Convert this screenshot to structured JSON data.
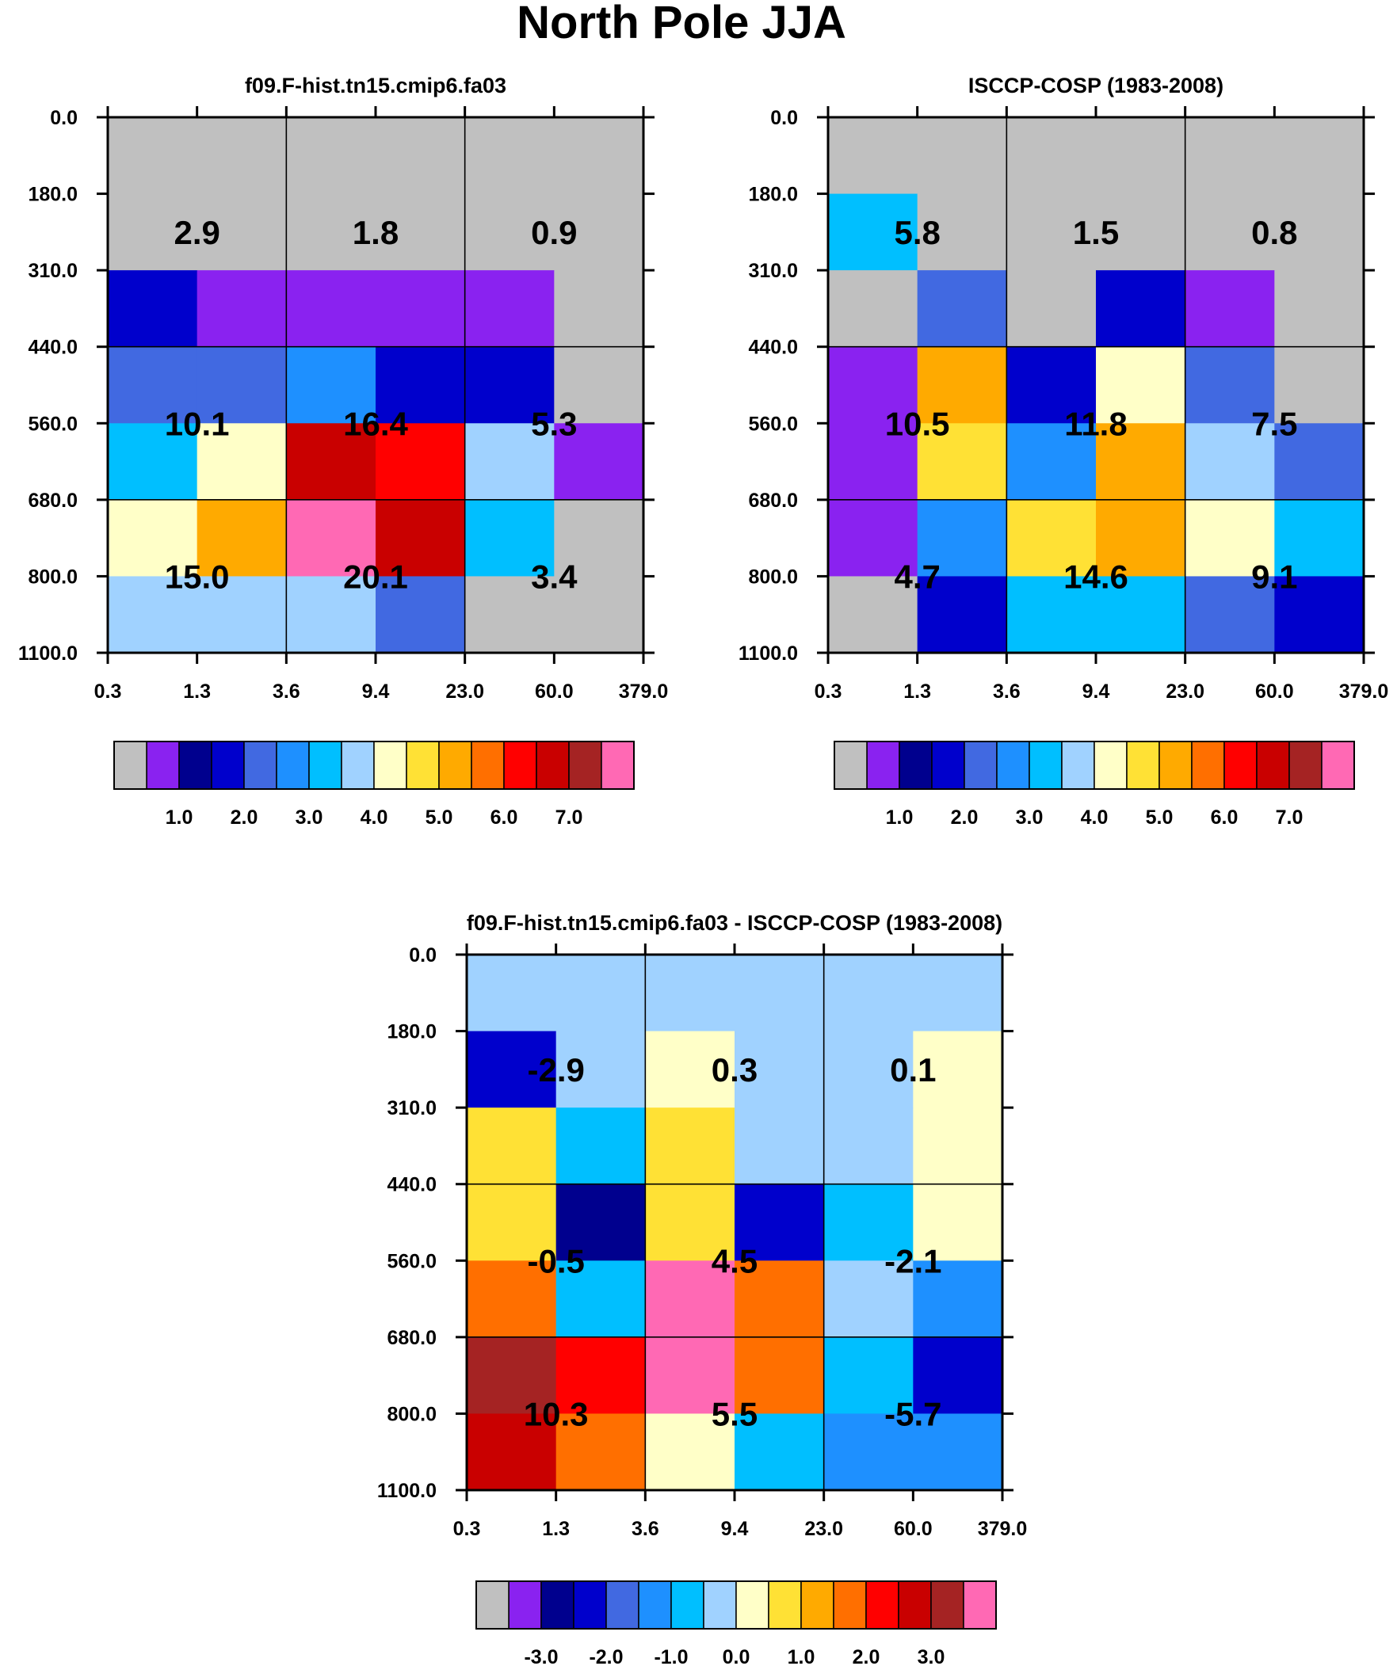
{
  "figure_title": "North Pole JJA",
  "chart_data": [
    {
      "type": "heatmap",
      "title": "f09.F-hist.tn15.cmip6.fa03",
      "x_ticks": [
        "0.3",
        "1.3",
        "3.6",
        "9.4",
        "23.0",
        "60.0",
        "379.0"
      ],
      "y_ticks": [
        "0.0",
        "180.0",
        "310.0",
        "440.0",
        "560.0",
        "680.0",
        "800.0",
        "1100.0"
      ],
      "cells": [
        [
          "missing",
          "missing",
          "missing",
          "missing",
          "missing",
          "missing"
        ],
        [
          "missing",
          "missing",
          "missing",
          "missing",
          "missing",
          "missing"
        ],
        [
          1.6,
          0.7,
          0.7,
          0.7,
          0.7,
          "missing"
        ],
        [
          2.2,
          2.2,
          2.7,
          1.7,
          1.7,
          "missing"
        ],
        [
          3.2,
          4.2,
          6.7,
          6.2,
          3.7,
          0.7
        ],
        [
          4.2,
          5.2,
          8.2,
          6.7,
          3.2,
          "missing"
        ],
        [
          3.7,
          3.7,
          3.7,
          2.2,
          "missing",
          "missing"
        ]
      ],
      "box_labels": [
        [
          "2.9",
          "1.8",
          "0.9"
        ],
        [
          "10.1",
          "16.4",
          "5.3"
        ],
        [
          "15.0",
          "20.1",
          "3.4"
        ]
      ],
      "colorbar_ticks": [
        "1.0",
        "2.0",
        "3.0",
        "4.0",
        "5.0",
        "6.0",
        "7.0"
      ]
    },
    {
      "type": "heatmap",
      "title": "ISCCP-COSP (1983-2008)",
      "x_ticks": [
        "0.3",
        "1.3",
        "3.6",
        "9.4",
        "23.0",
        "60.0",
        "379.0"
      ],
      "y_ticks": [
        "0.0",
        "180.0",
        "310.0",
        "440.0",
        "560.0",
        "680.0",
        "800.0",
        "1100.0"
      ],
      "cells": [
        [
          "missing",
          "missing",
          "missing",
          "missing",
          "missing",
          "missing"
        ],
        [
          3.2,
          "missing",
          "missing",
          "missing",
          "missing",
          "missing"
        ],
        [
          "missing",
          2.2,
          "missing",
          1.6,
          0.7,
          "missing"
        ],
        [
          0.7,
          5.2,
          1.6,
          4.2,
          2.2,
          "missing"
        ],
        [
          0.7,
          4.6,
          2.7,
          5.2,
          3.7,
          2.2
        ],
        [
          0.7,
          2.7,
          4.6,
          5.2,
          4.2,
          3.2
        ],
        [
          "missing",
          1.6,
          3.2,
          3.2,
          2.2,
          1.6
        ]
      ],
      "box_labels": [
        [
          "5.8",
          "1.5",
          "0.8"
        ],
        [
          "10.5",
          "11.8",
          "7.5"
        ],
        [
          "4.7",
          "14.6",
          "9.1"
        ]
      ],
      "colorbar_ticks": [
        "1.0",
        "2.0",
        "3.0",
        "4.0",
        "5.0",
        "6.0",
        "7.0"
      ]
    },
    {
      "type": "heatmap",
      "title": "f09.F-hist.tn15.cmip6.fa03 - ISCCP-COSP (1983-2008)",
      "x_ticks": [
        "0.3",
        "1.3",
        "3.6",
        "9.4",
        "23.0",
        "60.0",
        "379.0"
      ],
      "y_ticks": [
        "0.0",
        "180.0",
        "310.0",
        "440.0",
        "560.0",
        "680.0",
        "800.0",
        "1100.0"
      ],
      "cells": [
        [
          -0.25,
          -0.25,
          -0.25,
          -0.25,
          -0.25,
          -0.25
        ],
        [
          -2.25,
          -0.25,
          0.25,
          -0.25,
          -0.25,
          0.25
        ],
        [
          0.75,
          -0.75,
          0.75,
          -0.25,
          -0.25,
          0.25
        ],
        [
          0.75,
          -2.75,
          0.75,
          -2.25,
          -0.75,
          0.25
        ],
        [
          1.75,
          -0.75,
          3.75,
          1.75,
          -0.25,
          -1.25
        ],
        [
          3.25,
          2.25,
          3.75,
          1.75,
          -0.75,
          -2.25
        ],
        [
          2.75,
          1.75,
          0.25,
          -0.75,
          -1.25,
          -1.25
        ]
      ],
      "box_labels": [
        [
          "-2.9",
          "0.3",
          "0.1"
        ],
        [
          "-0.5",
          "4.5",
          "-2.1"
        ],
        [
          "10.3",
          "5.5",
          "-5.7"
        ]
      ],
      "colorbar_ticks": [
        "-3.0",
        "-2.0",
        "-1.0",
        "0.0",
        "1.0",
        "2.0",
        "3.0"
      ]
    }
  ],
  "palette": {
    "missing": "#c0c0c0",
    "colors": [
      "#8a22f0",
      "#00008e",
      "#0000cc",
      "#4169e1",
      "#1e90ff",
      "#00bfff",
      "#a0d2ff",
      "#ffffc8",
      "#ffe135",
      "#ffaa00",
      "#ff6f00",
      "#ff0000",
      "#c90000",
      "#a52323",
      "#ff69b4"
    ],
    "thresholds_abs": [
      1.0,
      1.5,
      2.0,
      2.5,
      3.0,
      3.5,
      4.0,
      4.5,
      5.0,
      5.5,
      6.0,
      6.5,
      7.0,
      7.5
    ],
    "thresholds_diff": [
      -3.0,
      -2.5,
      -2.0,
      -1.5,
      -1.0,
      -0.5,
      0.0,
      0.5,
      1.0,
      1.5,
      2.0,
      2.5,
      3.0,
      3.5
    ]
  }
}
